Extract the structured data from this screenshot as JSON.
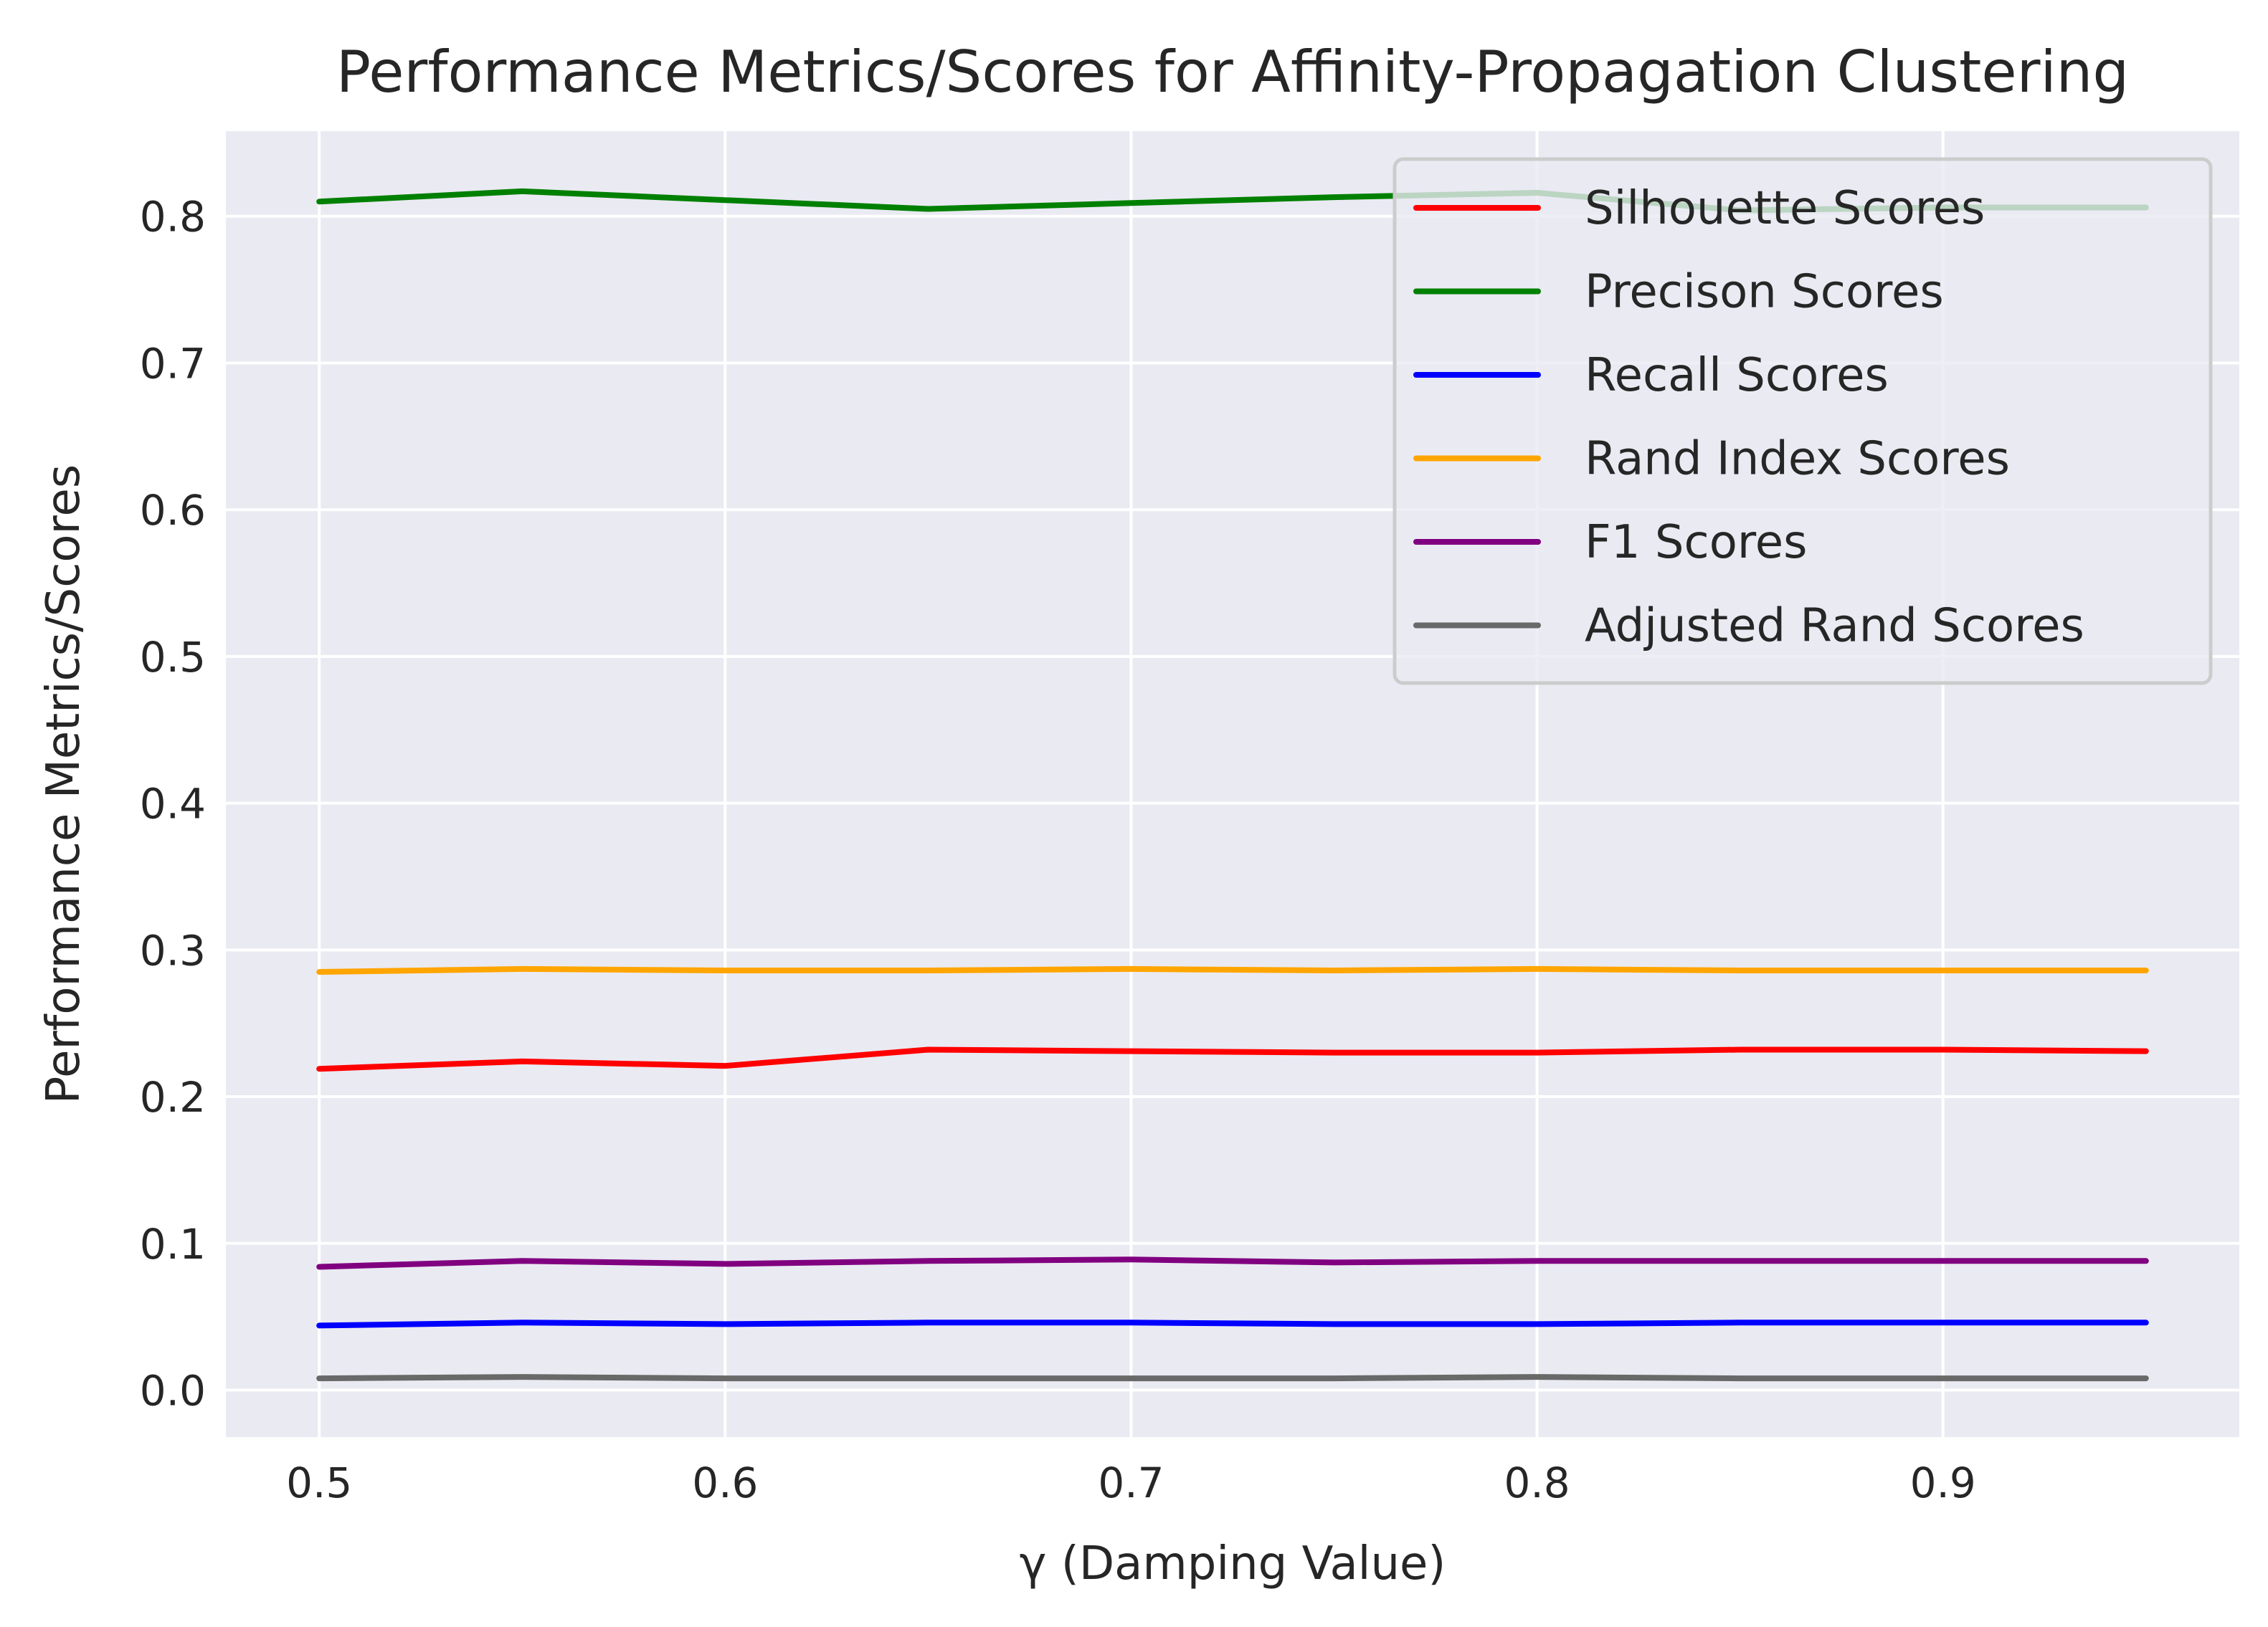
{
  "chart_data": {
    "type": "line",
    "title": "Performance Metrics/Scores for Affinity-Propagation Clustering",
    "xlabel": "γ (Damping Value)",
    "ylabel": "Performance Metrics/Scores",
    "xlim": [
      0.477,
      0.973
    ],
    "ylim": [
      -0.032,
      0.858
    ],
    "xticks": [
      "0.5",
      "0.6",
      "0.7",
      "0.8",
      "0.9"
    ],
    "xtick_values": [
      0.5,
      0.6,
      0.7,
      0.8,
      0.9
    ],
    "yticks": [
      "0.0",
      "0.1",
      "0.2",
      "0.3",
      "0.4",
      "0.5",
      "0.6",
      "0.7",
      "0.8"
    ],
    "ytick_values": [
      0.0,
      0.1,
      0.2,
      0.3,
      0.4,
      0.5,
      0.6,
      0.7,
      0.8
    ],
    "grid": true,
    "legend_position": "top-right",
    "x": [
      0.5,
      0.55,
      0.6,
      0.65,
      0.7,
      0.75,
      0.8,
      0.85,
      0.9,
      0.95
    ],
    "series": [
      {
        "name": "Silhouette Scores",
        "color": "#ff0000",
        "values": [
          0.219,
          0.224,
          0.221,
          0.232,
          0.231,
          0.23,
          0.23,
          0.232,
          0.232,
          0.231
        ]
      },
      {
        "name": "Precison Scores",
        "color": "#008000",
        "values": [
          0.81,
          0.817,
          0.811,
          0.805,
          0.809,
          0.813,
          0.816,
          0.804,
          0.806,
          0.806
        ]
      },
      {
        "name": "Recall Scores",
        "color": "#0000ff",
        "values": [
          0.044,
          0.046,
          0.045,
          0.046,
          0.046,
          0.045,
          0.045,
          0.046,
          0.046,
          0.046
        ]
      },
      {
        "name": "Rand Index Scores",
        "color": "#ffa500",
        "values": [
          0.285,
          0.287,
          0.286,
          0.286,
          0.287,
          0.286,
          0.287,
          0.286,
          0.286,
          0.286
        ]
      },
      {
        "name": "F1 Scores",
        "color": "#800080",
        "values": [
          0.084,
          0.088,
          0.086,
          0.088,
          0.089,
          0.087,
          0.088,
          0.088,
          0.088,
          0.088
        ]
      },
      {
        "name": "Adjusted Rand Scores",
        "color": "#696969",
        "values": [
          0.008,
          0.009,
          0.008,
          0.008,
          0.008,
          0.008,
          0.009,
          0.008,
          0.008,
          0.008
        ]
      }
    ]
  }
}
